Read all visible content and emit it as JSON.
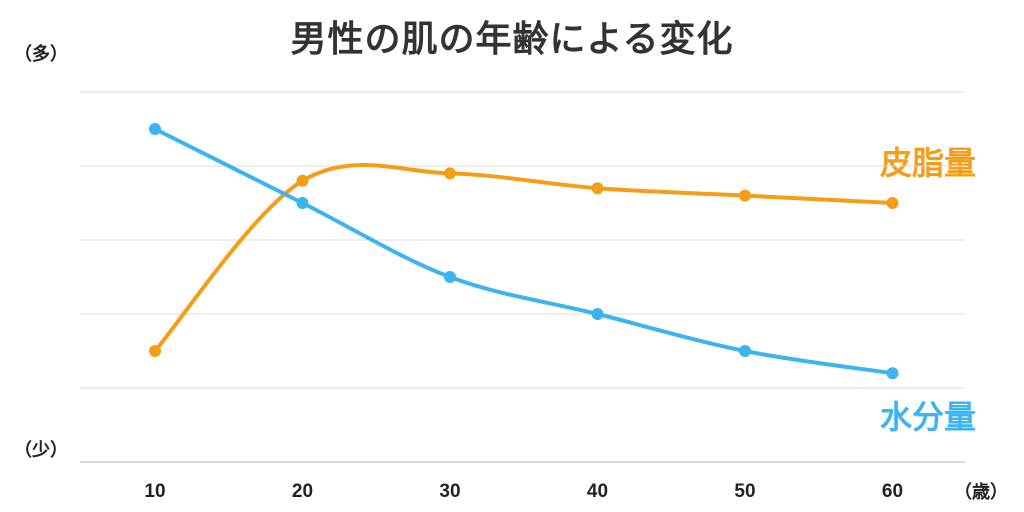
{
  "chart_data": {
    "type": "line",
    "title": "男性の肌の年齢による変化",
    "y_top_label": "（多）",
    "y_bottom_label": "（少）",
    "x_unit_label": "（歳）",
    "x": [
      10,
      20,
      30,
      40,
      50,
      60
    ],
    "ylim": [
      0,
      100
    ],
    "grid": true,
    "series": [
      {
        "name": "皮脂量",
        "color": "#f59d17",
        "values": [
          30,
          76,
          78,
          74,
          72,
          70
        ]
      },
      {
        "name": "水分量",
        "color": "#3bb4f0",
        "values": [
          90,
          70,
          50,
          40,
          30,
          24
        ]
      }
    ]
  }
}
